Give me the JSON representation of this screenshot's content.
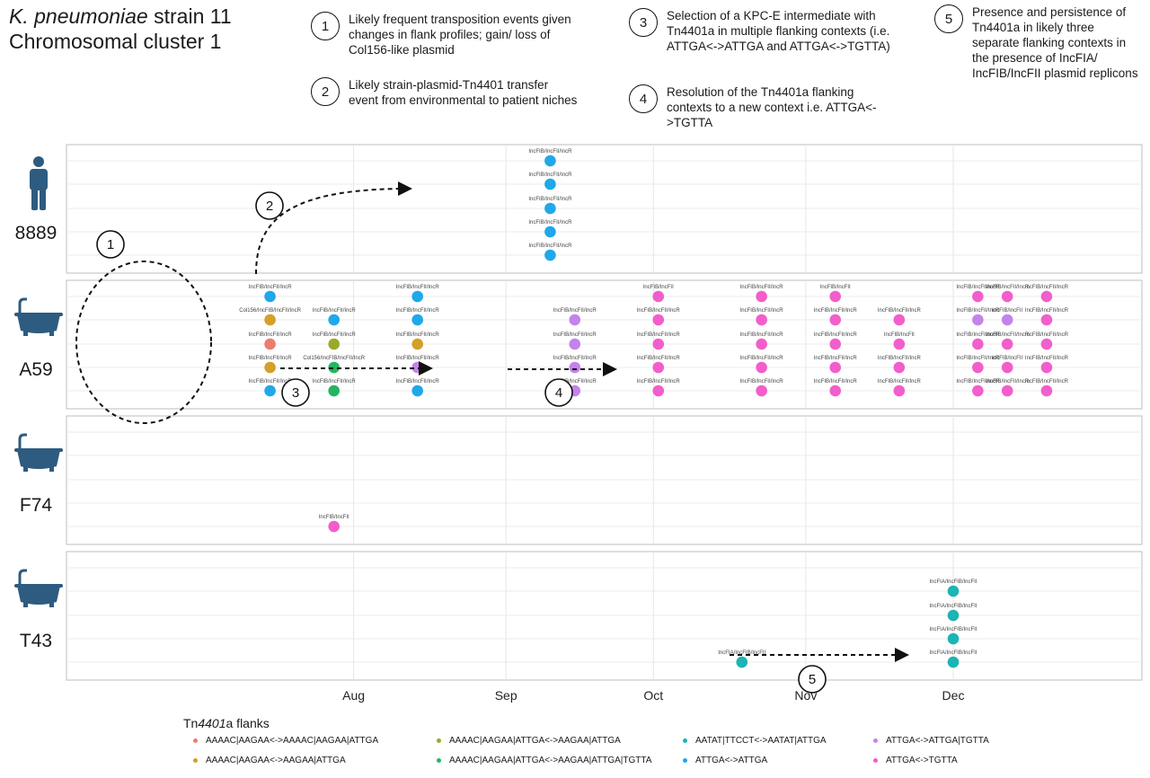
{
  "title": {
    "species": "K. pneumoniae",
    "strain": " strain 11",
    "line2": "Chromosomal cluster 1"
  },
  "notes": [
    {
      "num": "1",
      "text": "Likely frequent transposition events given changes in flank profiles; gain/ loss of Col156-like plasmid"
    },
    {
      "num": "2",
      "text": "Likely strain-plasmid-Tn4401 transfer event from environmental to patient niches"
    },
    {
      "num": "3",
      "text": "Selection of a KPC-E intermediate with  Tn4401a in multiple flanking contexts (i.e. ATTGA<->ATTGA and ATTGA<->TGTTA)"
    },
    {
      "num": "4",
      "text": "Resolution of the Tn4401a flanking contexts to a new context i.e. ATTGA<->TGTTA"
    },
    {
      "num": "5",
      "text": "Presence and persistence of Tn4401a in likely three separate flanking contexts in the presence of IncFIA/ IncFIB/IncFII plasmid replicons"
    }
  ],
  "colors": {
    "AAAAC|AAGAA<->AAAAC|AAGAA|ATTGA": "#ec7d6e",
    "AAAAC|AAGAA<->AAGAA|ATTGA": "#d4a02a",
    "AAAAC|AAGAA|ATTGA<->AAGAA|ATTGA": "#9aaa28",
    "AAAAC|AAGAA|ATTGA<->AAGAA|ATTGA|TGTTA": "#25b562",
    "AATAT|TTCCT<->AATAT|ATTGA": "#1cb4b4",
    "ATTGA<->ATTGA": "#1fa8ea",
    "ATTGA<->ATTGA|TGTTA": "#c483ea",
    "ATTGA<->TGTTA": "#f25ecb"
  },
  "chart_data": {
    "type": "scatter",
    "xlabel": "",
    "ylabel": "",
    "x_ticks": [
      "Aug",
      "Sep",
      "Oct",
      "Nov",
      "Dec"
    ],
    "legend_title": "Tn4401a flanks",
    "legend": [
      "AAAAC|AAGAA<->AAAAC|AAGAA|ATTGA",
      "AAAAC|AAGAA<->AAGAA|ATTGA",
      "AAAAC|AAGAA|ATTGA<->AAGAA|ATTGA",
      "AAAAC|AAGAA|ATTGA<->AAGAA|ATTGA|TGTTA",
      "AATAT|TTCCT<->AATAT|ATTGA",
      "ATTGA<->ATTGA",
      "ATTGA<->ATTGA|TGTTA",
      "ATTGA<->TGTTA"
    ],
    "panels": [
      {
        "label": "8889",
        "icon": "person-icon",
        "points": [
          {
            "date": "2000-09-10",
            "level": 1,
            "flank": "ATTGA<->ATTGA",
            "label": "IncFIB/IncFII/IncR"
          },
          {
            "date": "2000-09-10",
            "level": 2,
            "flank": "ATTGA<->ATTGA",
            "label": "IncFIB/IncFII/IncR"
          },
          {
            "date": "2000-09-10",
            "level": 3,
            "flank": "ATTGA<->ATTGA",
            "label": "IncFIB/IncFII/IncR"
          },
          {
            "date": "2000-09-10",
            "level": 4,
            "flank": "ATTGA<->ATTGA",
            "label": "IncFIB/IncFII/IncR"
          },
          {
            "date": "2000-09-10",
            "level": 5,
            "flank": "ATTGA<->ATTGA",
            "label": "IncFIB/IncFII/IncR"
          }
        ]
      },
      {
        "label": "A59",
        "icon": "bathtub-icon",
        "points": [
          {
            "date": "2000-07-15",
            "level": 1,
            "flank": "ATTGA<->ATTGA",
            "label": "IncFIB/IncFII/IncR"
          },
          {
            "date": "2000-07-15",
            "level": 2,
            "flank": "AAAAC|AAGAA<->AAGAA|ATTGA",
            "label": "Col156/IncFIB/IncFII/IncR"
          },
          {
            "date": "2000-07-15",
            "level": 3,
            "flank": "AAAAC|AAGAA<->AAAAC|AAGAA|ATTGA",
            "label": "IncFIB/IncFII/IncR"
          },
          {
            "date": "2000-07-15",
            "level": 4,
            "flank": "AAAAC|AAGAA<->AAGAA|ATTGA",
            "label": "IncFIB/IncFII/IncR"
          },
          {
            "date": "2000-07-15",
            "level": 5,
            "flank": "ATTGA<->ATTGA",
            "label": "IncFIB/IncFII/IncR"
          },
          {
            "date": "2000-07-28",
            "level": 2,
            "flank": "ATTGA<->ATTGA",
            "label": "IncFIB/IncFII/IncR"
          },
          {
            "date": "2000-07-28",
            "level": 3,
            "flank": "AAAAC|AAGAA|ATTGA<->AAGAA|ATTGA",
            "label": "IncFIB/IncFII/IncR"
          },
          {
            "date": "2000-07-28",
            "level": 4,
            "flank": "AAAAC|AAGAA|ATTGA<->AAGAA|ATTGA|TGTTA",
            "label": "Col156/IncFIB/IncFII/IncR"
          },
          {
            "date": "2000-07-28",
            "level": 5,
            "flank": "AAAAC|AAGAA|ATTGA<->AAGAA|ATTGA|TGTTA",
            "label": "IncFIB/IncFII/IncR"
          },
          {
            "date": "2000-08-14",
            "level": 1,
            "flank": "ATTGA<->ATTGA",
            "label": "IncFIB/IncFII/IncR"
          },
          {
            "date": "2000-08-14",
            "level": 2,
            "flank": "ATTGA<->ATTGA",
            "label": "IncFIB/IncFII/IncR"
          },
          {
            "date": "2000-08-14",
            "level": 3,
            "flank": "AAAAC|AAGAA<->AAGAA|ATTGA",
            "label": "IncFIB/IncFII/IncR"
          },
          {
            "date": "2000-08-14",
            "level": 4,
            "flank": "ATTGA<->ATTGA|TGTTA",
            "label": "IncFIB/IncFII/IncR"
          },
          {
            "date": "2000-08-14",
            "level": 5,
            "flank": "ATTGA<->ATTGA",
            "label": "IncFIB/IncFII/IncR"
          },
          {
            "date": "2000-09-15",
            "level": 2,
            "flank": "ATTGA<->ATTGA|TGTTA",
            "label": "IncFIB/IncFII/IncR"
          },
          {
            "date": "2000-09-15",
            "level": 3,
            "flank": "ATTGA<->ATTGA|TGTTA",
            "label": "IncFIB/IncFII/IncR"
          },
          {
            "date": "2000-09-15",
            "level": 4,
            "flank": "ATTGA<->ATTGA|TGTTA",
            "label": "IncFIB/IncFII/IncR"
          },
          {
            "date": "2000-09-15",
            "level": 5,
            "flank": "ATTGA<->ATTGA|TGTTA",
            "label": "IncFIB/IncFII/IncR"
          },
          {
            "date": "2000-10-02",
            "level": 1,
            "flank": "ATTGA<->TGTTA",
            "label": "IncFIB/IncFII"
          },
          {
            "date": "2000-10-02",
            "level": 2,
            "flank": "ATTGA<->TGTTA",
            "label": "IncFIB/IncFII/IncR"
          },
          {
            "date": "2000-10-02",
            "level": 3,
            "flank": "ATTGA<->TGTTA",
            "label": "IncFIB/IncFII/IncR"
          },
          {
            "date": "2000-10-02",
            "level": 4,
            "flank": "ATTGA<->TGTTA",
            "label": "IncFIB/IncFII/IncR"
          },
          {
            "date": "2000-10-02",
            "level": 5,
            "flank": "ATTGA<->TGTTA",
            "label": "IncFIB/IncFII/IncR"
          },
          {
            "date": "2000-10-23",
            "level": 1,
            "flank": "ATTGA<->TGTTA",
            "label": "IncFIB/IncFII/IncR"
          },
          {
            "date": "2000-10-23",
            "level": 2,
            "flank": "ATTGA<->TGTTA",
            "label": "IncFIB/IncFII/IncR"
          },
          {
            "date": "2000-10-23",
            "level": 3,
            "flank": "ATTGA<->TGTTA",
            "label": "IncFIB/IncFII/IncR"
          },
          {
            "date": "2000-10-23",
            "level": 4,
            "flank": "ATTGA<->TGTTA",
            "label": "IncFIB/IncFII/IncR"
          },
          {
            "date": "2000-10-23",
            "level": 5,
            "flank": "ATTGA<->TGTTA",
            "label": "IncFIB/IncFII/IncR"
          },
          {
            "date": "2000-11-07",
            "level": 1,
            "flank": "ATTGA<->TGTTA",
            "label": "IncFIB/IncFII"
          },
          {
            "date": "2000-11-07",
            "level": 2,
            "flank": "ATTGA<->TGTTA",
            "label": "IncFIB/IncFII/IncR"
          },
          {
            "date": "2000-11-07",
            "level": 3,
            "flank": "ATTGA<->TGTTA",
            "label": "IncFIB/IncFII/IncR"
          },
          {
            "date": "2000-11-07",
            "level": 4,
            "flank": "ATTGA<->TGTTA",
            "label": "IncFIB/IncFII/IncR"
          },
          {
            "date": "2000-11-07",
            "level": 5,
            "flank": "ATTGA<->TGTTA",
            "label": "IncFIB/IncFII/IncR"
          },
          {
            "date": "2000-11-20",
            "level": 2,
            "flank": "ATTGA<->TGTTA",
            "label": "IncFIB/IncFII/IncR"
          },
          {
            "date": "2000-11-20",
            "level": 3,
            "flank": "ATTGA<->TGTTA",
            "label": "IncFIB/IncFII"
          },
          {
            "date": "2000-11-20",
            "level": 4,
            "flank": "ATTGA<->TGTTA",
            "label": "IncFIB/IncFII/IncR"
          },
          {
            "date": "2000-11-20",
            "level": 5,
            "flank": "ATTGA<->TGTTA",
            "label": "IncFIB/IncFII/IncR"
          },
          {
            "date": "2000-12-06",
            "level": 1,
            "flank": "ATTGA<->TGTTA",
            "label": "IncFIB/IncFII/IncR"
          },
          {
            "date": "2000-12-06",
            "level": 2,
            "flank": "ATTGA<->ATTGA|TGTTA",
            "label": "IncFIB/IncFII/IncR"
          },
          {
            "date": "2000-12-06",
            "level": 3,
            "flank": "ATTGA<->TGTTA",
            "label": "IncFIB/IncFII/IncR"
          },
          {
            "date": "2000-12-06",
            "level": 4,
            "flank": "ATTGA<->TGTTA",
            "label": "IncFIB/IncFII/IncR"
          },
          {
            "date": "2000-12-06",
            "level": 5,
            "flank": "ATTGA<->TGTTA",
            "label": "IncFIB/IncFII/IncR"
          },
          {
            "date": "2000-12-12",
            "level": 1,
            "flank": "ATTGA<->TGTTA",
            "label": "IncFIB/IncFII/IncR"
          },
          {
            "date": "2000-12-12",
            "level": 2,
            "flank": "ATTGA<->ATTGA|TGTTA",
            "label": "IncFIB/IncFII"
          },
          {
            "date": "2000-12-12",
            "level": 3,
            "flank": "ATTGA<->TGTTA",
            "label": "IncFIB/IncFII/IncR"
          },
          {
            "date": "2000-12-12",
            "level": 4,
            "flank": "ATTGA<->TGTTA",
            "label": "IncFIB/IncFII"
          },
          {
            "date": "2000-12-12",
            "level": 5,
            "flank": "ATTGA<->TGTTA",
            "label": "IncFIB/IncFII/IncR"
          },
          {
            "date": "2000-12-20",
            "level": 1,
            "flank": "ATTGA<->TGTTA",
            "label": "IncFIB/IncFII/IncR"
          },
          {
            "date": "2000-12-20",
            "level": 2,
            "flank": "ATTGA<->TGTTA",
            "label": "IncFIB/IncFII/IncR"
          },
          {
            "date": "2000-12-20",
            "level": 3,
            "flank": "ATTGA<->TGTTA",
            "label": "IncFIB/IncFII/IncR"
          },
          {
            "date": "2000-12-20",
            "level": 4,
            "flank": "ATTGA<->TGTTA",
            "label": "IncFIB/IncFII/IncR"
          },
          {
            "date": "2000-12-20",
            "level": 5,
            "flank": "ATTGA<->TGTTA",
            "label": "IncFIB/IncFII/IncR"
          }
        ]
      },
      {
        "label": "F74",
        "icon": "bathtub-icon",
        "points": [
          {
            "date": "2000-07-28",
            "level": 5,
            "flank": "ATTGA<->TGTTA",
            "label": "IncFIB/IncFII"
          }
        ]
      },
      {
        "label": "T43",
        "icon": "bathtub-icon",
        "points": [
          {
            "date": "2000-10-19",
            "level": 5,
            "flank": "AATAT|TTCCT<->AATAT|ATTGA",
            "label": "IncFIA/IncFIB/IncFII"
          },
          {
            "date": "2000-12-01",
            "level": 2,
            "flank": "AATAT|TTCCT<->AATAT|ATTGA",
            "label": "IncFIA/IncFIB/IncFII"
          },
          {
            "date": "2000-12-01",
            "level": 3,
            "flank": "AATAT|TTCCT<->AATAT|ATTGA",
            "label": "IncFIA/IncFIB/IncFII"
          },
          {
            "date": "2000-12-01",
            "level": 4,
            "flank": "AATAT|TTCCT<->AATAT|ATTGA",
            "label": "IncFIA/IncFIB/IncFII"
          },
          {
            "date": "2000-12-01",
            "level": 5,
            "flank": "AATAT|TTCCT<->AATAT|ATTGA",
            "label": "IncFIA/IncFIB/IncFII"
          }
        ]
      }
    ],
    "annotations": [
      {
        "num": "1",
        "panel": "A59",
        "kind": "ellipse"
      },
      {
        "num": "2",
        "from": "A59",
        "to": "8889"
      },
      {
        "num": "3",
        "panel": "A59"
      },
      {
        "num": "4",
        "panel": "A59"
      },
      {
        "num": "5",
        "panel": "T43"
      }
    ]
  }
}
